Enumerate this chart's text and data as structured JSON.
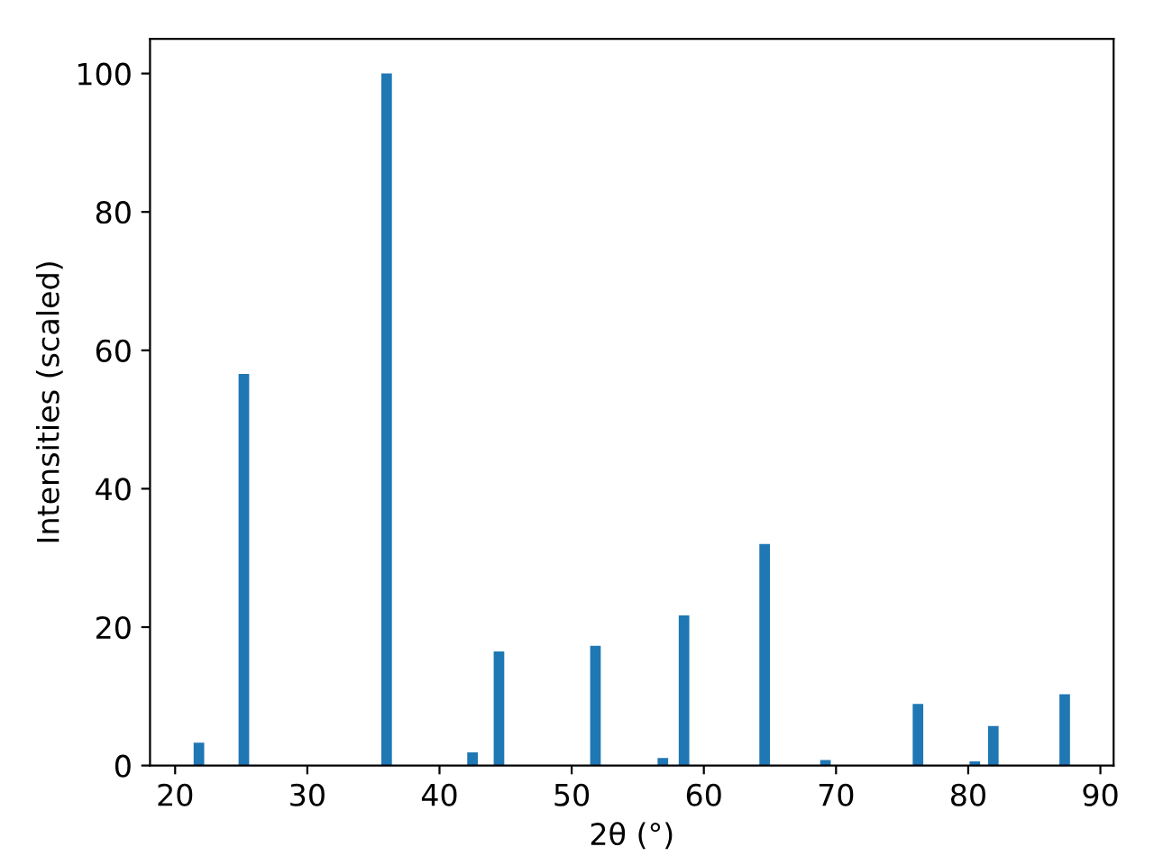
{
  "chart_data": {
    "type": "bar",
    "xlabel": "2θ (°)",
    "ylabel": "Intensities (scaled)",
    "x": [
      21.8,
      25.2,
      36.0,
      42.5,
      44.5,
      51.8,
      56.9,
      58.5,
      64.6,
      69.2,
      76.2,
      80.5,
      81.9,
      87.3
    ],
    "values": [
      3.3,
      56.6,
      100,
      1.9,
      16.5,
      17.3,
      1.1,
      21.7,
      32.0,
      0.8,
      8.9,
      0.6,
      5.7,
      10.3
    ],
    "color": "#1f77b4",
    "xlim": [
      18.1,
      91.0
    ],
    "xticks": [
      20,
      30,
      40,
      50,
      60,
      70,
      80,
      90
    ],
    "ylim": [
      0,
      105
    ],
    "yticks": [
      0,
      20,
      40,
      60,
      80,
      100
    ],
    "grid": false
  }
}
